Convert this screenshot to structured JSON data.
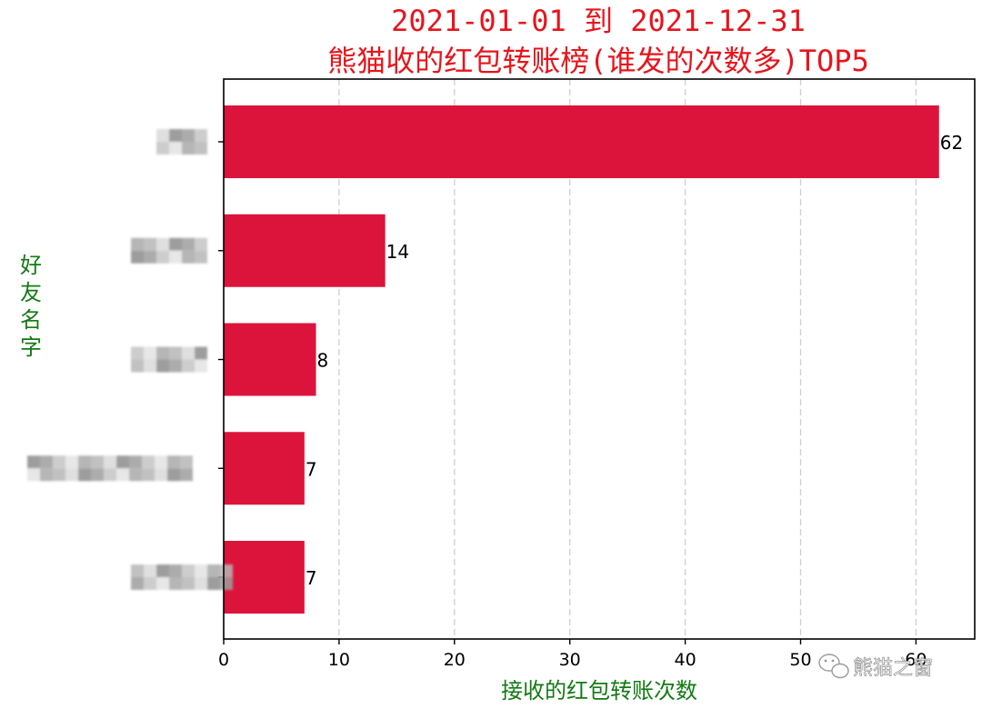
{
  "colors": {
    "title": "#e8141c",
    "axis_label": "#137a13",
    "bar": "#dc143c",
    "grid": "#cfcfcf"
  },
  "chart_data": {
    "type": "bar",
    "orientation": "horizontal",
    "title": "2021-01-01 到 2021-12-31\n熊猫收的红包转账榜(谁发的次数多)TOP5",
    "xlabel": "接收的红包转账次数",
    "ylabel": "好友名字",
    "categories": [
      "",
      "",
      "",
      "",
      ""
    ],
    "values": [
      62,
      14,
      8,
      7,
      7
    ],
    "data_labels": [
      "62",
      "14",
      "8",
      "7",
      "7"
    ],
    "xlim": [
      0,
      65
    ],
    "xticks": [
      0,
      10,
      20,
      30,
      40,
      50,
      60
    ],
    "x_grid": true,
    "grid_style": "dashed",
    "category_labels_blurred": true
  },
  "watermark": {
    "text": "熊猫之窗",
    "icon": "wechat-icon"
  }
}
